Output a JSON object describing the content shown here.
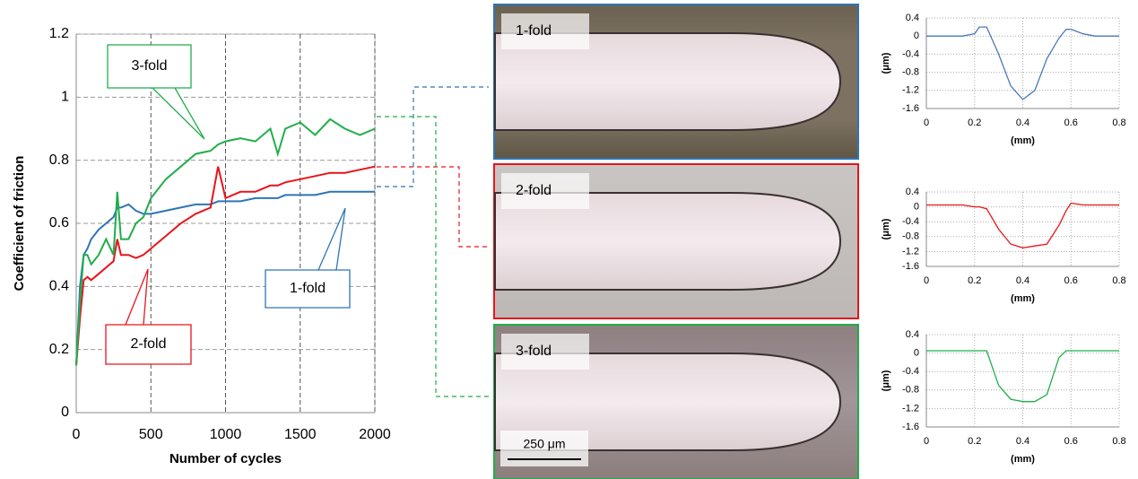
{
  "chart_data": [
    {
      "type": "line",
      "xlabel": "Number of cycles",
      "ylabel": "Coefficient of friction",
      "x": [
        0,
        25,
        50,
        75,
        100,
        150,
        200,
        250,
        275,
        300,
        350,
        400,
        450,
        500,
        600,
        700,
        800,
        900,
        950,
        1000,
        1100,
        1200,
        1300,
        1350,
        1400,
        1500,
        1600,
        1700,
        1800,
        1900,
        2000
      ],
      "xlim": [
        0,
        2000
      ],
      "xticks": [
        0,
        500,
        1000,
        1500,
        2000
      ],
      "ylim": [
        0,
        1.2
      ],
      "yticks": [
        0,
        0.2,
        0.4,
        0.6,
        0.8,
        1,
        1.2
      ],
      "grid": true,
      "series": [
        {
          "name": "1-fold",
          "color": "#2e75b6",
          "values": [
            0.15,
            0.4,
            0.5,
            0.52,
            0.55,
            0.58,
            0.6,
            0.62,
            0.65,
            0.65,
            0.66,
            0.64,
            0.63,
            0.63,
            0.64,
            0.65,
            0.66,
            0.66,
            0.67,
            0.67,
            0.67,
            0.68,
            0.68,
            0.68,
            0.69,
            0.69,
            0.69,
            0.7,
            0.7,
            0.7,
            0.7
          ]
        },
        {
          "name": "2-fold",
          "color": "#e8141b",
          "values": [
            0.15,
            0.3,
            0.42,
            0.43,
            0.42,
            0.44,
            0.46,
            0.48,
            0.55,
            0.5,
            0.5,
            0.49,
            0.5,
            0.52,
            0.56,
            0.6,
            0.63,
            0.65,
            0.78,
            0.68,
            0.7,
            0.7,
            0.72,
            0.72,
            0.73,
            0.74,
            0.75,
            0.76,
            0.76,
            0.77,
            0.78
          ]
        },
        {
          "name": "3-fold",
          "color": "#1fae4b",
          "values": [
            0.15,
            0.35,
            0.5,
            0.5,
            0.47,
            0.5,
            0.55,
            0.5,
            0.7,
            0.55,
            0.55,
            0.6,
            0.62,
            0.68,
            0.74,
            0.78,
            0.82,
            0.83,
            0.85,
            0.86,
            0.87,
            0.86,
            0.9,
            0.82,
            0.9,
            0.92,
            0.88,
            0.93,
            0.9,
            0.88,
            0.9
          ]
        }
      ]
    },
    {
      "type": "line",
      "xlabel": "(mm)",
      "ylabel": "(μm)",
      "x": [
        0,
        0.05,
        0.1,
        0.15,
        0.2,
        0.22,
        0.25,
        0.3,
        0.35,
        0.4,
        0.45,
        0.5,
        0.55,
        0.58,
        0.6,
        0.65,
        0.7,
        0.75,
        0.8
      ],
      "xlim": [
        0,
        0.8
      ],
      "xticks": [
        0,
        0.2,
        0.4,
        0.6,
        0.8
      ],
      "ylim": [
        -1.6,
        0.4
      ],
      "yticks": [
        0.4,
        0,
        -0.4,
        -0.8,
        -1.2,
        -1.6
      ],
      "grid": true,
      "series": [
        {
          "name": "1-fold",
          "color": "#4a78b8",
          "values": [
            0,
            0,
            0,
            0,
            0.05,
            0.2,
            0.2,
            -0.4,
            -1.1,
            -1.4,
            -1.2,
            -0.5,
            -0.05,
            0.15,
            0.15,
            0.05,
            0,
            0,
            0
          ]
        }
      ]
    },
    {
      "type": "line",
      "xlabel": "(mm)",
      "ylabel": "(μm)",
      "x": [
        0,
        0.05,
        0.1,
        0.15,
        0.2,
        0.22,
        0.25,
        0.3,
        0.35,
        0.4,
        0.45,
        0.5,
        0.55,
        0.58,
        0.6,
        0.65,
        0.7,
        0.75,
        0.8
      ],
      "xlim": [
        0,
        0.8
      ],
      "xticks": [
        0,
        0.2,
        0.4,
        0.6,
        0.8
      ],
      "ylim": [
        -1.6,
        0.4
      ],
      "yticks": [
        0.4,
        0,
        -0.4,
        -0.8,
        -1.2,
        -1.6
      ],
      "grid": true,
      "series": [
        {
          "name": "2-fold",
          "color": "#e8141b",
          "values": [
            0.05,
            0.05,
            0.05,
            0.05,
            0,
            0,
            -0.05,
            -0.6,
            -1.0,
            -1.1,
            -1.05,
            -1.0,
            -0.5,
            -0.1,
            0.1,
            0.05,
            0.05,
            0.05,
            0.05
          ]
        }
      ]
    },
    {
      "type": "line",
      "xlabel": "(mm)",
      "ylabel": "(μm)",
      "x": [
        0,
        0.05,
        0.1,
        0.15,
        0.2,
        0.22,
        0.25,
        0.3,
        0.35,
        0.4,
        0.45,
        0.5,
        0.55,
        0.58,
        0.6,
        0.65,
        0.7,
        0.75,
        0.8
      ],
      "xlim": [
        0,
        0.8
      ],
      "xticks": [
        0,
        0.2,
        0.4,
        0.6,
        0.8
      ],
      "ylim": [
        -1.6,
        0.4
      ],
      "yticks": [
        0.4,
        0,
        -0.4,
        -0.8,
        -1.2,
        -1.6
      ],
      "grid": true,
      "series": [
        {
          "name": "3-fold",
          "color": "#1fae4b",
          "values": [
            0.05,
            0.05,
            0.05,
            0.05,
            0.05,
            0.05,
            0.05,
            -0.7,
            -1.0,
            -1.05,
            -1.05,
            -0.9,
            -0.1,
            0.05,
            0.05,
            0.05,
            0.05,
            0.05,
            0.05
          ]
        }
      ]
    }
  ],
  "micrographs": [
    {
      "label": "1-fold",
      "color": "#2e75b6"
    },
    {
      "label": "2-fold",
      "color": "#e8141b"
    },
    {
      "label": "3-fold",
      "color": "#1fae4b"
    }
  ],
  "scale_bar": "250 μm"
}
